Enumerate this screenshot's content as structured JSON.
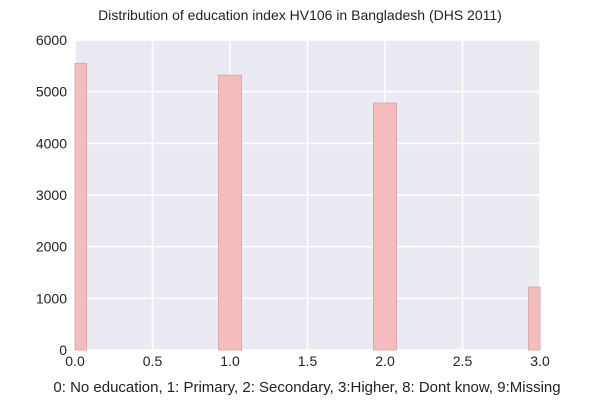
{
  "chart_data": {
    "type": "bar",
    "title": "Distribution of education index HV106 in Bangladesh (DHS 2011)",
    "xlabel": "0: No education, 1: Primary, 2: Secondary, 3:Higher, 8: Dont know, 9:Missing",
    "ylabel": "",
    "x": [
      0,
      1,
      2,
      3
    ],
    "values": [
      5550,
      5320,
      4780,
      1220
    ],
    "bin_width": 0.15,
    "xlim": [
      0.0,
      3.0
    ],
    "ylim": [
      0,
      6000
    ],
    "xticks": [
      "0.0",
      "0.5",
      "1.0",
      "1.5",
      "2.0",
      "2.5",
      "3.0"
    ],
    "yticks": [
      "0",
      "1000",
      "2000",
      "3000",
      "4000",
      "5000",
      "6000"
    ],
    "grid": true,
    "colors": {
      "bar_fill": "#f4bcbc",
      "bar_edge": "#d9a3a8",
      "plot_background": "#eaeaf2",
      "grid": "#ffffff"
    }
  }
}
